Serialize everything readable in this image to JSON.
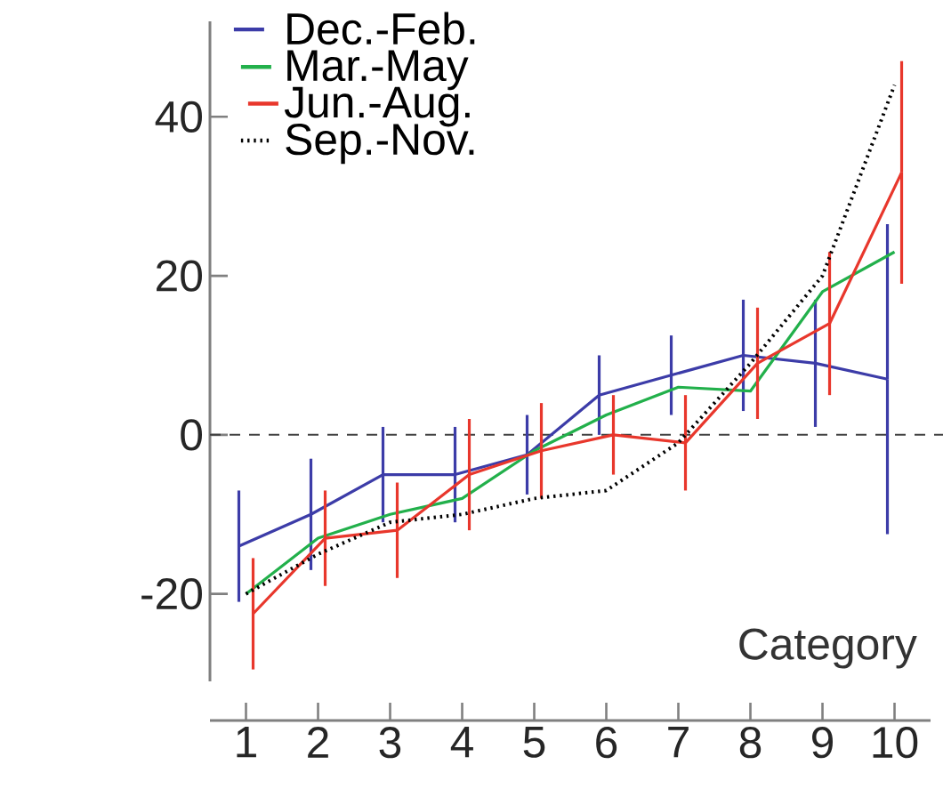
{
  "chart_data": {
    "type": "line",
    "xlabel": "Category",
    "categories": [
      "1",
      "2",
      "3",
      "4",
      "5",
      "6",
      "7",
      "8",
      "9",
      "10"
    ],
    "ylim": [
      -31,
      52
    ],
    "yticks": [
      -20,
      0,
      20,
      40
    ],
    "legend": "top left",
    "marker": "none",
    "grid": false,
    "ref_lines": [
      {
        "axis": "y",
        "value": 0,
        "line_style": "dashed",
        "color": "#404040"
      }
    ],
    "series": [
      {
        "name": "Dec.-Feb.",
        "color": "#3c3ca8",
        "line_style": "solid",
        "values": [
          -14,
          -10,
          -5,
          -5,
          -2.5,
          5,
          7.5,
          10,
          9,
          7
        ],
        "errors": [
          7,
          7,
          6,
          6,
          5,
          5,
          5,
          7,
          8,
          19.5
        ]
      },
      {
        "name": "Mar.-May",
        "color": "#22b04b",
        "line_style": "solid",
        "values": [
          -20,
          -13,
          -10,
          -8,
          -2,
          2.5,
          6,
          5.5,
          18,
          23
        ]
      },
      {
        "name": "Jun.-Aug.",
        "color": "#e8372c",
        "line_style": "solid",
        "values": [
          -22.5,
          -13,
          -12,
          -5,
          -2,
          0,
          -1,
          9,
          14,
          33
        ],
        "errors": [
          7,
          6,
          6,
          7,
          6,
          5,
          6,
          7,
          9,
          14
        ]
      },
      {
        "name": "Sep.-Nov.",
        "color": "#000000",
        "line_style": "dotted",
        "values": [
          -20,
          -15,
          -11,
          -10,
          -8,
          -7,
          -1,
          9,
          20,
          44
        ]
      }
    ]
  }
}
